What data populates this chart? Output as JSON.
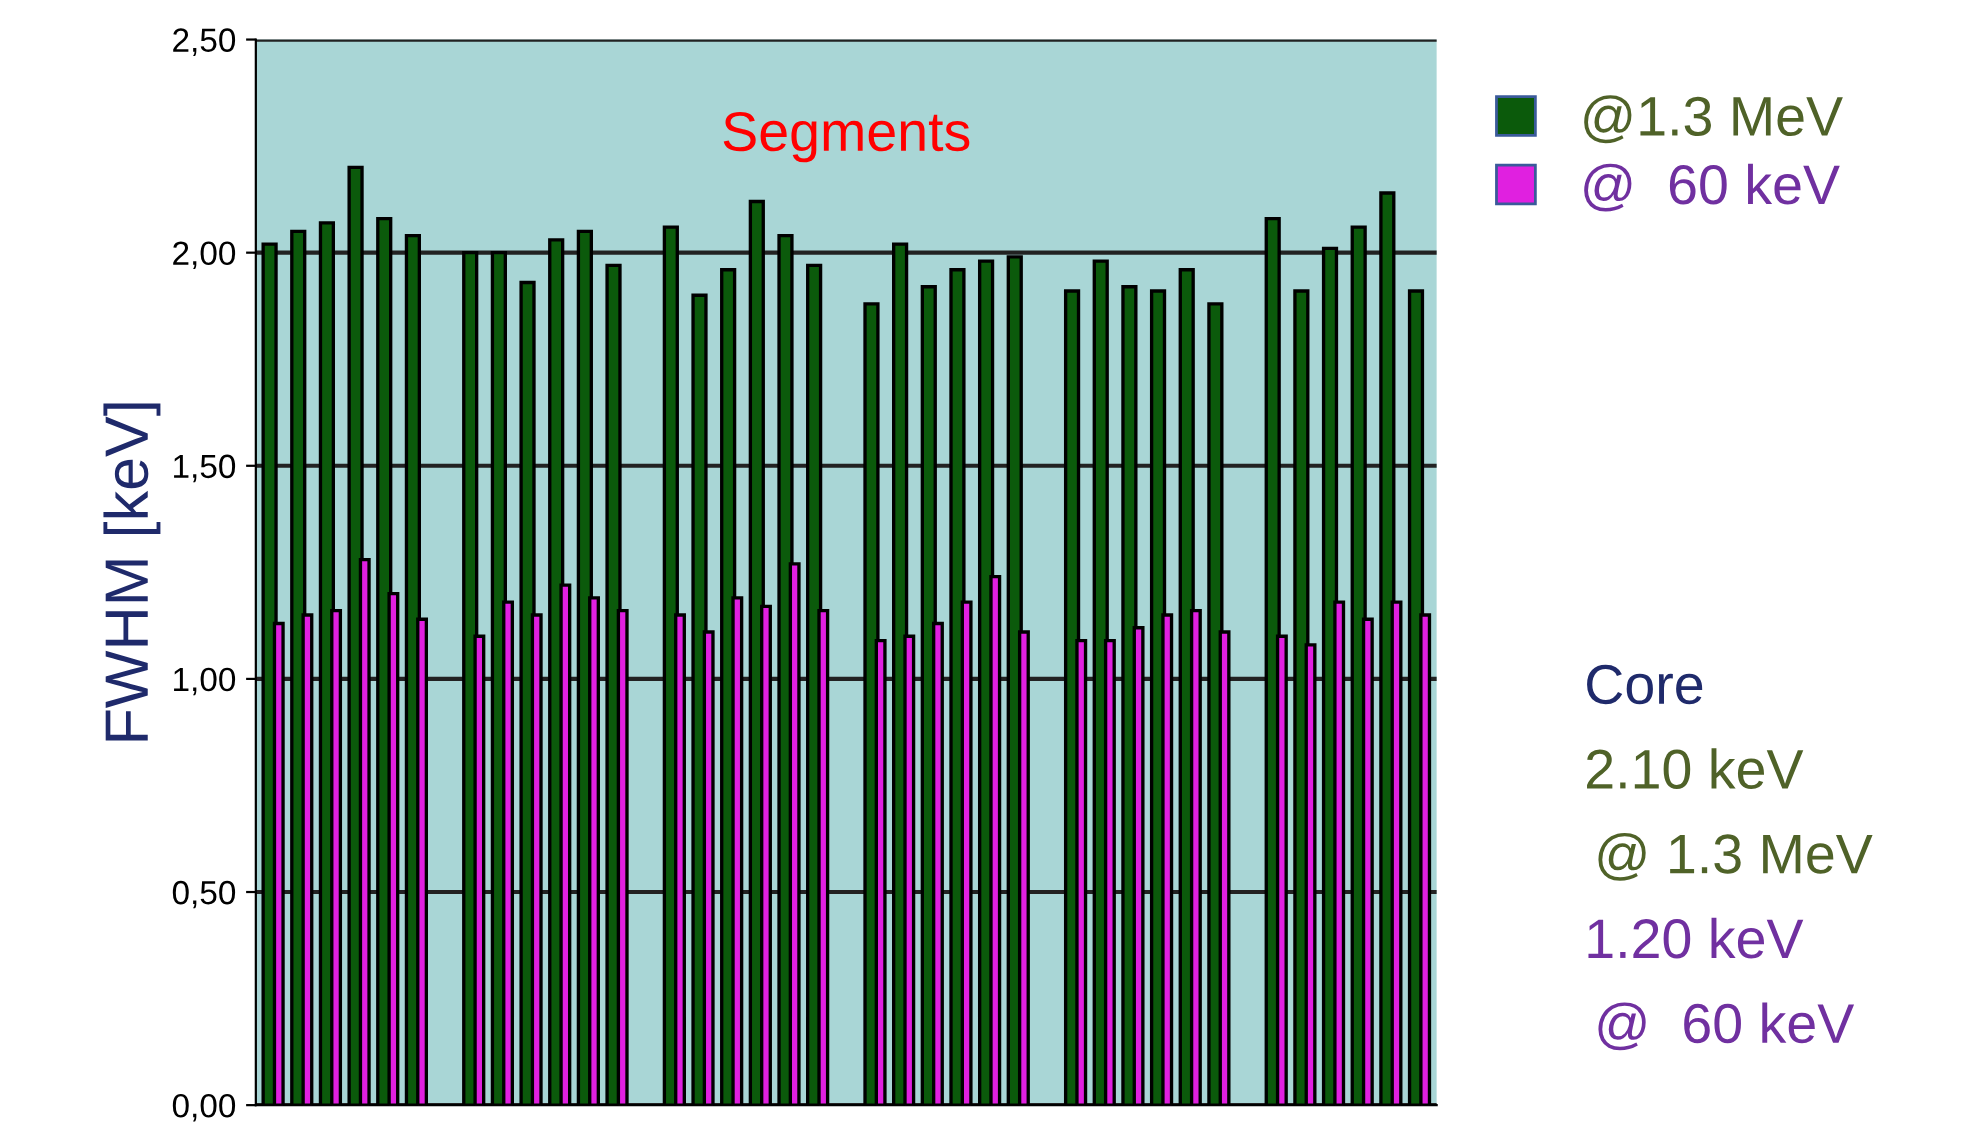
{
  "chart_data": {
    "type": "bar",
    "title": "Segments",
    "ylabel": "FWHM [keV]",
    "categories": [
      null,
      null,
      null,
      null,
      null,
      null,
      null,
      null,
      null,
      null,
      null,
      null,
      null,
      null,
      null,
      null,
      null,
      null,
      null,
      null,
      null,
      null,
      null,
      null,
      null,
      null,
      null,
      null,
      null,
      null,
      null,
      null,
      null,
      null,
      null,
      null,
      null,
      null,
      null,
      null,
      null
    ],
    "series": [
      {
        "name": "@1.3 MeV",
        "color": "#0b5a0b",
        "values": [
          2.02,
          2.05,
          2.07,
          2.2,
          2.08,
          2.04,
          null,
          2.0,
          2.0,
          1.93,
          2.03,
          2.05,
          1.97,
          null,
          2.06,
          1.9,
          1.96,
          2.12,
          2.04,
          1.97,
          null,
          1.88,
          2.02,
          1.92,
          1.96,
          1.98,
          1.99,
          null,
          1.91,
          1.98,
          1.92,
          1.91,
          1.96,
          1.88,
          null,
          2.08,
          1.91,
          2.01,
          2.06,
          2.14,
          1.91
        ]
      },
      {
        "name": "@  60 keV",
        "color": "#e020e0",
        "values": [
          1.13,
          1.15,
          1.16,
          1.28,
          1.2,
          1.14,
          null,
          1.1,
          1.18,
          1.15,
          1.22,
          1.19,
          1.16,
          null,
          1.15,
          1.11,
          1.19,
          1.17,
          1.27,
          1.16,
          null,
          1.09,
          1.1,
          1.13,
          1.18,
          1.24,
          1.11,
          null,
          1.09,
          1.09,
          1.12,
          1.15,
          1.16,
          1.11,
          null,
          1.1,
          1.08,
          1.18,
          1.14,
          1.18,
          1.15
        ]
      }
    ],
    "ylim": [
      0,
      2.5
    ],
    "yticks": [
      {
        "value": 0,
        "label": "0,00"
      },
      {
        "value": 0.5,
        "label": "0,50"
      },
      {
        "value": 1,
        "label": "1,00"
      },
      {
        "value": 1.5,
        "label": "1,50"
      },
      {
        "value": 2,
        "label": "2,00"
      },
      {
        "value": 2.5,
        "label": "2,50"
      }
    ],
    "grid": "y",
    "legend": "top right",
    "annotations": [
      "Core",
      "2.10 keV",
      "@ 1.3 MeV",
      "1.20 keV",
      "@  60 keV"
    ]
  }
}
